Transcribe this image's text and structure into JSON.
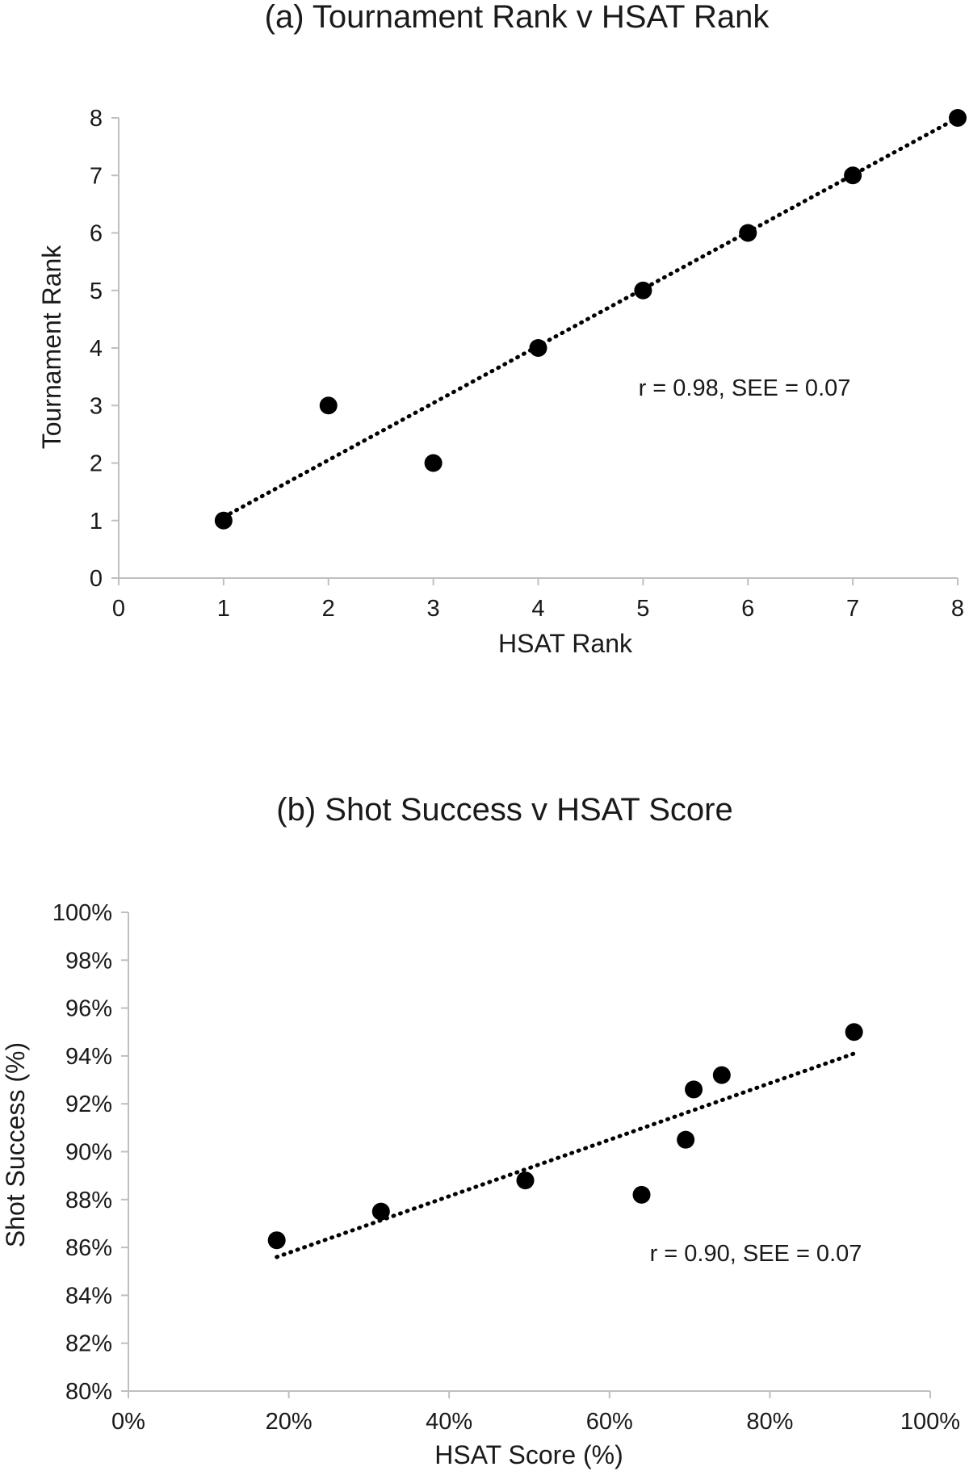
{
  "chart_data": [
    {
      "type": "scatter",
      "title": "(a) Tournament Rank v HSAT Rank",
      "xlabel": "HSAT Rank",
      "ylabel": "Tournament Rank",
      "xlim": [
        0,
        8
      ],
      "ylim": [
        0,
        8
      ],
      "xticks": [
        "0",
        "1",
        "2",
        "3",
        "4",
        "5",
        "6",
        "7",
        "8"
      ],
      "yticks": [
        "0",
        "1",
        "2",
        "3",
        "4",
        "5",
        "6",
        "7",
        "8"
      ],
      "grid": false,
      "points": [
        {
          "x": 1,
          "y": 1
        },
        {
          "x": 2,
          "y": 3
        },
        {
          "x": 3,
          "y": 2
        },
        {
          "x": 4,
          "y": 4
        },
        {
          "x": 5,
          "y": 5
        },
        {
          "x": 6,
          "y": 6
        },
        {
          "x": 7,
          "y": 7
        },
        {
          "x": 8,
          "y": 8
        }
      ],
      "trendline": {
        "x": [
          1,
          8
        ],
        "y": [
          1.06,
          8.0
        ]
      },
      "annotation": "r = 0.98, SEE = 0.07",
      "colors": {
        "marker": "#000000",
        "axis": "#bfbfbf"
      }
    },
    {
      "type": "scatter",
      "title": "(b) Shot Success v HSAT Score",
      "xlabel": "HSAT Score (%)",
      "ylabel": "Shot Success (%)",
      "xlim": [
        0,
        100
      ],
      "ylim": [
        80,
        100
      ],
      "xticks": [
        "0%",
        "20%",
        "40%",
        "60%",
        "80%",
        "100%"
      ],
      "yticks": [
        "80%",
        "82%",
        "84%",
        "86%",
        "88%",
        "90%",
        "92%",
        "94%",
        "96%",
        "98%",
        "100%"
      ],
      "grid": false,
      "points": [
        {
          "x": 18.5,
          "y": 86.3
        },
        {
          "x": 31.5,
          "y": 87.5
        },
        {
          "x": 49.5,
          "y": 88.8
        },
        {
          "x": 64.0,
          "y": 88.2
        },
        {
          "x": 69.5,
          "y": 90.5
        },
        {
          "x": 70.5,
          "y": 92.6
        },
        {
          "x": 74.0,
          "y": 93.2
        },
        {
          "x": 90.5,
          "y": 95.0
        }
      ],
      "trendline": {
        "x": [
          18.5,
          90.5
        ],
        "y": [
          85.6,
          94.1
        ]
      },
      "annotation": "r = 0.90, SEE = 0.07",
      "colors": {
        "marker": "#000000",
        "axis": "#bfbfbf"
      }
    }
  ]
}
